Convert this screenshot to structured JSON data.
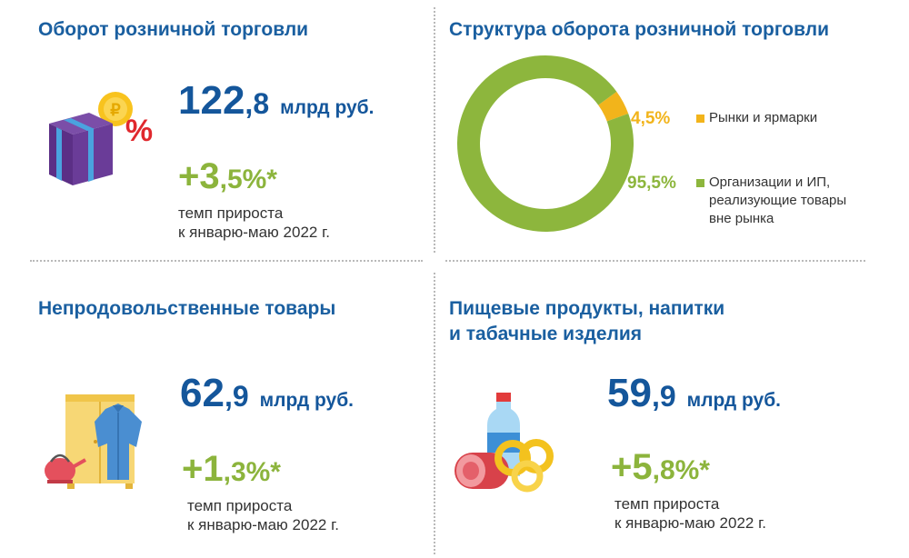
{
  "retail": {
    "title": "Оборот розничной торговли",
    "value_int": "122",
    "value_dec": ",8",
    "unit": "млрд руб.",
    "growth_int": "+3",
    "growth_dec": ",5%*",
    "caption_line1": "темп прироста",
    "caption_line2": "к январю-маю 2022 г.",
    "icon": "gift-box-percent-icon"
  },
  "structure": {
    "title": "Структура оборота розничной торговли",
    "chart_data": {
      "type": "pie",
      "title": "Структура оборота розничной торговли",
      "labels": [
        "Рынки и ярмарки",
        "Организации и ИП, реализующие товары вне рынка"
      ],
      "values": [
        4.5,
        95.5
      ],
      "value_labels": [
        "4,5%",
        "95,5%"
      ],
      "legend_texts": [
        "Рынки и ярмарки",
        "Организации и ИП,\nреализующие товары\nвне рынка"
      ],
      "colors": [
        "#f2b41b",
        "#8db63d"
      ]
    }
  },
  "nonfood": {
    "title": "Непродовольственные товары",
    "value_int": "62",
    "value_dec": ",9",
    "unit": "млрд руб.",
    "growth_int": "+1",
    "growth_dec": ",3%*",
    "caption_line1": "темп прироста",
    "caption_line2": "к январю-маю 2022 г.",
    "icon": "wardrobe-shirt-kettle-icon"
  },
  "food": {
    "title_line1": "Пищевые продукты, напитки",
    "title_line2": "и табачные изделия",
    "value_int": "59",
    "value_dec": ",9",
    "unit": "млрд руб.",
    "growth_int": "+5",
    "growth_dec": ",8%*",
    "caption_line1": "темп прироста",
    "caption_line2": "к январю-маю 2022 г.",
    "icon": "food-bottle-sausage-bagels-icon"
  }
}
